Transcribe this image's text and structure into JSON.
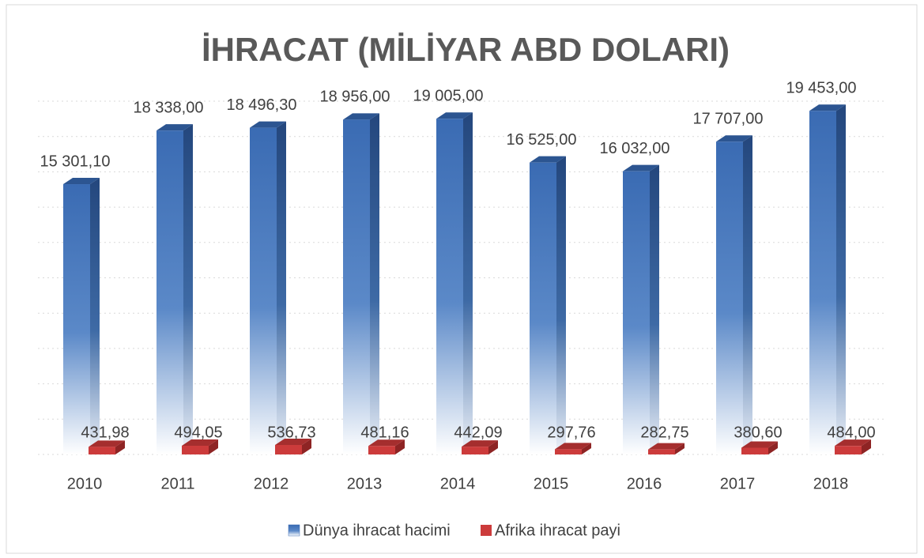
{
  "chart_data": {
    "type": "bar3d",
    "title": "İHRACAT (MİLİYAR ABD DOLARI)",
    "categories": [
      "2010",
      "2011",
      "2012",
      "2013",
      "2014",
      "2015",
      "2016",
      "2017",
      "2018"
    ],
    "series": [
      {
        "name": "Dünya ihracat hacimi",
        "color": "#3a6bb3",
        "values": [
          15301.1,
          18338.0,
          18496.3,
          18956.0,
          19005.0,
          16525.0,
          16032.0,
          17707.0,
          19453.0
        ],
        "value_labels": [
          "15 301,10",
          "18 338,00",
          "18 496,30",
          "18 956,00",
          "19 005,00",
          "16 525,00",
          "16 032,00",
          "17 707,00",
          "19 453,00"
        ]
      },
      {
        "name": "Afrika ihracat payi",
        "color": "#cc3b3b",
        "values": [
          431.98,
          494.05,
          536.73,
          481.16,
          442.09,
          297.76,
          282.75,
          380.6,
          484.0
        ],
        "value_labels": [
          "431,98",
          "494,05",
          "536,73",
          "481,16",
          "442,09",
          "297,76",
          "282,75",
          "380,60",
          "484,00"
        ]
      }
    ],
    "ylim": [
      0,
      20000
    ],
    "yticks": [
      0,
      2000,
      4000,
      6000,
      8000,
      10000,
      12000,
      14000,
      16000,
      18000,
      20000
    ],
    "grid": true,
    "legend": "bottom"
  }
}
